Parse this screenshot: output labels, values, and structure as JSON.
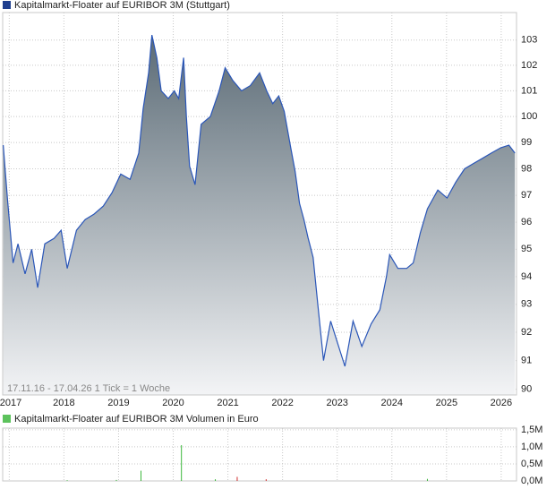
{
  "chart_data": [
    {
      "type": "area",
      "title": "Kapitalmarkt-Floater auf EURIBOR 3M (Stuttgart)",
      "legend_color": "#1f3f8f",
      "subtitle": "17.11.16 - 17.04.26   1 Tick = 1 Woche",
      "log": true,
      "grid": true,
      "color": "#2a56b8",
      "xlim": [
        2016.88,
        2026.28
      ],
      "xticks": [
        2017,
        2018,
        2019,
        2020,
        2021,
        2022,
        2023,
        2024,
        2025,
        2026
      ],
      "ylim": [
        89.8,
        104.1
      ],
      "yticks": [
        90,
        91,
        92,
        93,
        94,
        95,
        96,
        97,
        98,
        99,
        100,
        101,
        102,
        103
      ],
      "x": [
        2016.89,
        2016.97,
        2017.07,
        2017.16,
        2017.29,
        2017.41,
        2017.52,
        2017.65,
        2017.82,
        2017.95,
        2018.06,
        2018.23,
        2018.39,
        2018.55,
        2018.72,
        2018.88,
        2019.04,
        2019.21,
        2019.37,
        2019.45,
        2019.55,
        2019.61,
        2019.7,
        2019.78,
        2019.91,
        2020.02,
        2020.1,
        2020.19,
        2020.24,
        2020.3,
        2020.4,
        2020.51,
        2020.68,
        2020.84,
        2020.95,
        2021.09,
        2021.25,
        2021.41,
        2021.58,
        2021.71,
        2021.82,
        2021.93,
        2022.03,
        2022.15,
        2022.23,
        2022.31,
        2022.39,
        2022.47,
        2022.56,
        2022.64,
        2022.75,
        2022.88,
        2023.01,
        2023.14,
        2023.29,
        2023.45,
        2023.62,
        2023.78,
        2023.9,
        2023.96,
        2024.11,
        2024.27,
        2024.39,
        2024.52,
        2024.65,
        2024.84,
        2025.01,
        2025.17,
        2025.33,
        2025.49,
        2025.66,
        2025.82,
        2025.99,
        2026.14,
        2026.25
      ],
      "values": [
        98.9,
        96.8,
        94.5,
        95.2,
        94.1,
        95.0,
        93.6,
        95.2,
        95.4,
        95.7,
        94.3,
        95.7,
        96.1,
        96.3,
        96.6,
        97.1,
        97.8,
        97.6,
        98.6,
        100.3,
        101.7,
        103.2,
        102.3,
        101.0,
        100.7,
        101.0,
        100.7,
        102.3,
        100.0,
        98.1,
        97.4,
        99.7,
        100.0,
        101.0,
        101.9,
        101.4,
        101.0,
        101.2,
        101.7,
        101.0,
        100.5,
        100.8,
        100.2,
        98.8,
        97.9,
        96.7,
        96.1,
        95.4,
        94.7,
        93.1,
        91.0,
        92.4,
        91.6,
        90.8,
        92.4,
        91.5,
        92.3,
        92.8,
        94.0,
        94.8,
        94.3,
        94.3,
        94.5,
        95.6,
        96.5,
        97.2,
        96.9,
        97.5,
        98.0,
        98.2,
        98.4,
        98.6,
        98.8,
        98.9,
        98.6
      ]
    },
    {
      "type": "bar",
      "title": "Kapitalmarkt-Floater auf EURIBOR 3M Volumen in Euro",
      "legend_color": "#5cc25c",
      "grid": true,
      "xlim": [
        2016.88,
        2026.28
      ],
      "ylim": [
        0,
        1550000
      ],
      "yticks": [
        {
          "value": 0,
          "label": "0,0M"
        },
        {
          "value": 500000,
          "label": "0,5M"
        },
        {
          "value": 1000000,
          "label": "1,0M"
        },
        {
          "value": 1500000,
          "label": "1,5M"
        }
      ],
      "x": [
        2018.06,
        2018.96,
        2019.41,
        2020.15,
        2020.77,
        2021.17,
        2021.7,
        2024.65
      ],
      "values": [
        20000,
        30000,
        300000,
        1050000,
        50000,
        120000,
        50000,
        60000
      ],
      "colors": [
        "#3cb83c",
        "#3cb83c",
        "#3cb83c",
        "#3cb83c",
        "#3cb83c",
        "#d03030",
        "#d03030",
        "#3cb83c"
      ]
    }
  ]
}
